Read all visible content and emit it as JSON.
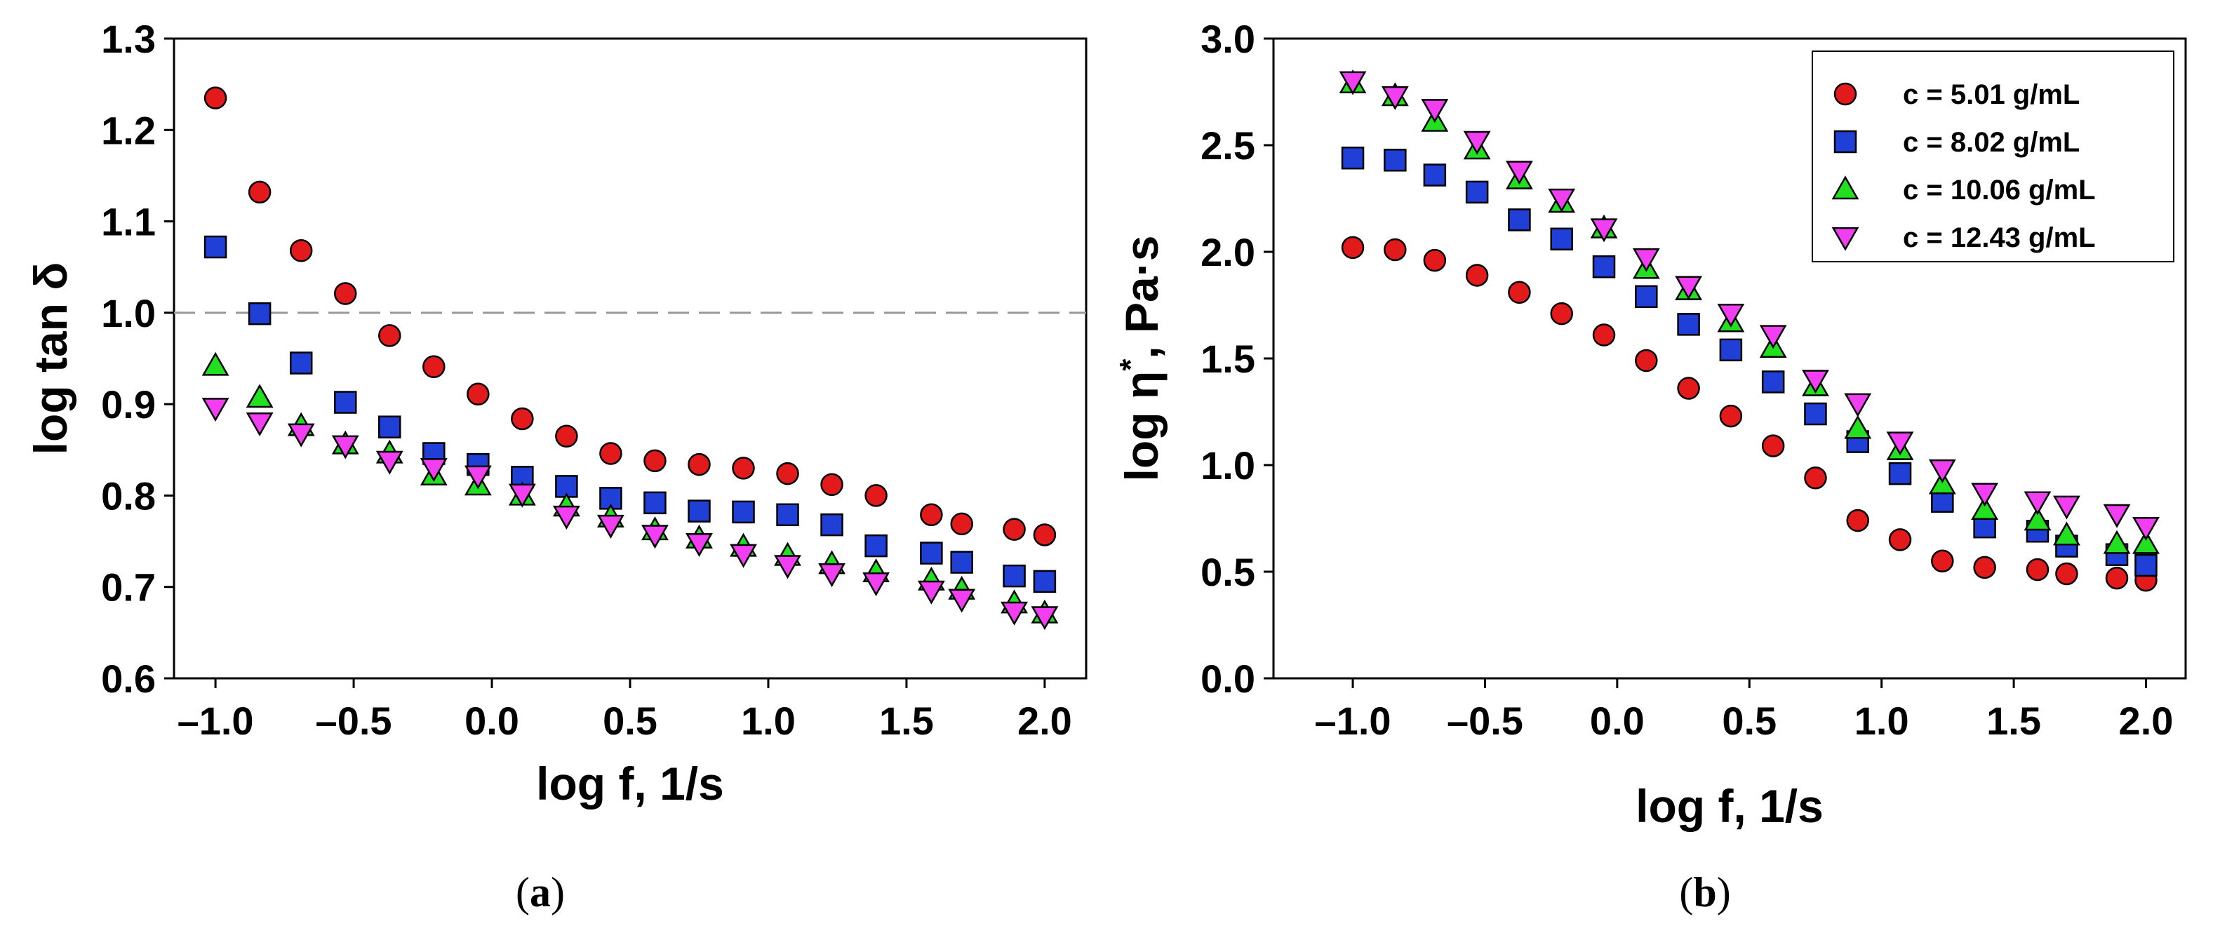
{
  "figure": {
    "caption_a_open": "(",
    "caption_a_letter": "a",
    "caption_a_close": ")",
    "caption_b_open": "(",
    "caption_b_letter": "b",
    "caption_b_close": ")"
  },
  "chart_data": [
    {
      "id": "a",
      "type": "scatter",
      "title": "",
      "xlabel": "log f, 1/s",
      "ylabel": "log tan δ",
      "xlim": [
        -1.15,
        2.15
      ],
      "ylim": [
        0.6,
        1.3
      ],
      "x_ticks": [
        -1.0,
        -0.5,
        0.0,
        0.5,
        1.0,
        1.5,
        2.0
      ],
      "x_tick_labels": [
        "–1.0",
        "–0.5",
        "0.0",
        "0.5",
        "1.0",
        "1.5",
        "2.0"
      ],
      "y_ticks": [
        0.6,
        0.7,
        0.8,
        0.9,
        1.0,
        1.1,
        1.2,
        1.3
      ],
      "y_tick_labels": [
        "0.6",
        "0.7",
        "0.8",
        "0.9",
        "1.0",
        "1.1",
        "1.2",
        "1.3"
      ],
      "reference_line": {
        "y": 1.0,
        "style": "dashed",
        "color": "#999999"
      },
      "x": [
        -1.0,
        -0.84,
        -0.69,
        -0.53,
        -0.37,
        -0.21,
        -0.05,
        0.11,
        0.27,
        0.43,
        0.59,
        0.75,
        0.91,
        1.07,
        1.23,
        1.39,
        1.59,
        1.7,
        1.89,
        2.0
      ],
      "series": [
        {
          "name": "c = 5.01 g/mL",
          "marker": "circle",
          "color": "#e31a1c",
          "values": [
            1.235,
            1.132,
            1.068,
            1.021,
            0.975,
            0.941,
            0.911,
            0.884,
            0.865,
            0.846,
            0.838,
            0.834,
            0.83,
            0.824,
            0.812,
            0.8,
            0.779,
            0.769,
            0.763,
            0.757
          ]
        },
        {
          "name": "c = 8.02 g/mL",
          "marker": "square",
          "color": "#1f3fd6",
          "values": [
            1.072,
            0.999,
            0.945,
            0.902,
            0.875,
            0.846,
            0.834,
            0.82,
            0.81,
            0.797,
            0.792,
            0.783,
            0.782,
            0.779,
            0.768,
            0.745,
            0.737,
            0.727,
            0.712,
            0.706
          ]
        },
        {
          "name": "c = 10.06 g/mL",
          "marker": "triangle-up",
          "color": "#22e01f",
          "values": [
            0.942,
            0.907,
            0.876,
            0.856,
            0.846,
            0.822,
            0.811,
            0.8,
            0.788,
            0.776,
            0.762,
            0.753,
            0.744,
            0.734,
            0.725,
            0.716,
            0.707,
            0.697,
            0.682,
            0.671
          ]
        },
        {
          "name": "c = 12.43 g/mL",
          "marker": "triangle-down",
          "color": "#f03ef0",
          "values": [
            0.896,
            0.88,
            0.868,
            0.855,
            0.838,
            0.83,
            0.822,
            0.802,
            0.778,
            0.768,
            0.757,
            0.748,
            0.736,
            0.724,
            0.715,
            0.705,
            0.696,
            0.687,
            0.673,
            0.668
          ]
        }
      ]
    },
    {
      "id": "b",
      "type": "scatter",
      "title": "",
      "xlabel": "log f, 1/s",
      "ylabel_main": "log η",
      "ylabel_sup": "*",
      "ylabel_tail": ", Pa·s",
      "xlim": [
        -1.3,
        2.15
      ],
      "ylim": [
        0.0,
        3.0
      ],
      "x_ticks": [
        -1.0,
        -0.5,
        0.0,
        0.5,
        1.0,
        1.5,
        2.0
      ],
      "x_tick_labels": [
        "–1.0",
        "–0.5",
        "0.0",
        "0.5",
        "1.0",
        "1.5",
        "2.0"
      ],
      "y_ticks": [
        0.0,
        0.5,
        1.0,
        1.5,
        2.0,
        2.5,
        3.0
      ],
      "y_tick_labels": [
        "0.0",
        "0.5",
        "1.0",
        "1.5",
        "2.0",
        "2.5",
        "3.0"
      ],
      "legend_position": "top-right",
      "x": [
        -1.0,
        -0.84,
        -0.69,
        -0.53,
        -0.37,
        -0.21,
        -0.05,
        0.11,
        0.27,
        0.43,
        0.59,
        0.75,
        0.91,
        1.07,
        1.23,
        1.39,
        1.59,
        1.7,
        1.89,
        2.0
      ],
      "series": [
        {
          "name": "c = 5.01 g/mL",
          "marker": "circle",
          "color": "#e31a1c",
          "values": [
            2.02,
            2.01,
            1.96,
            1.89,
            1.81,
            1.71,
            1.61,
            1.49,
            1.36,
            1.23,
            1.09,
            0.94,
            0.74,
            0.65,
            0.55,
            0.52,
            0.51,
            0.49,
            0.47,
            0.46
          ]
        },
        {
          "name": "c = 8.02 g/mL",
          "marker": "square",
          "color": "#1f3fd6",
          "values": [
            2.44,
            2.43,
            2.36,
            2.28,
            2.15,
            2.06,
            1.93,
            1.79,
            1.66,
            1.54,
            1.39,
            1.24,
            1.11,
            0.96,
            0.83,
            0.71,
            0.69,
            0.62,
            0.58,
            0.53
          ]
        },
        {
          "name": "c = 10.06 g/mL",
          "marker": "triangle-up",
          "color": "#22e01f",
          "values": [
            2.79,
            2.73,
            2.61,
            2.48,
            2.34,
            2.23,
            2.11,
            1.92,
            1.82,
            1.67,
            1.55,
            1.37,
            1.17,
            1.07,
            0.91,
            0.79,
            0.74,
            0.67,
            0.63,
            0.63
          ]
        },
        {
          "name": "c = 12.43 g/mL",
          "marker": "triangle-down",
          "color": "#f03ef0",
          "values": [
            2.8,
            2.73,
            2.67,
            2.52,
            2.38,
            2.25,
            2.11,
            1.97,
            1.84,
            1.71,
            1.61,
            1.4,
            1.29,
            1.11,
            0.98,
            0.87,
            0.83,
            0.81,
            0.77,
            0.71
          ]
        }
      ]
    }
  ]
}
